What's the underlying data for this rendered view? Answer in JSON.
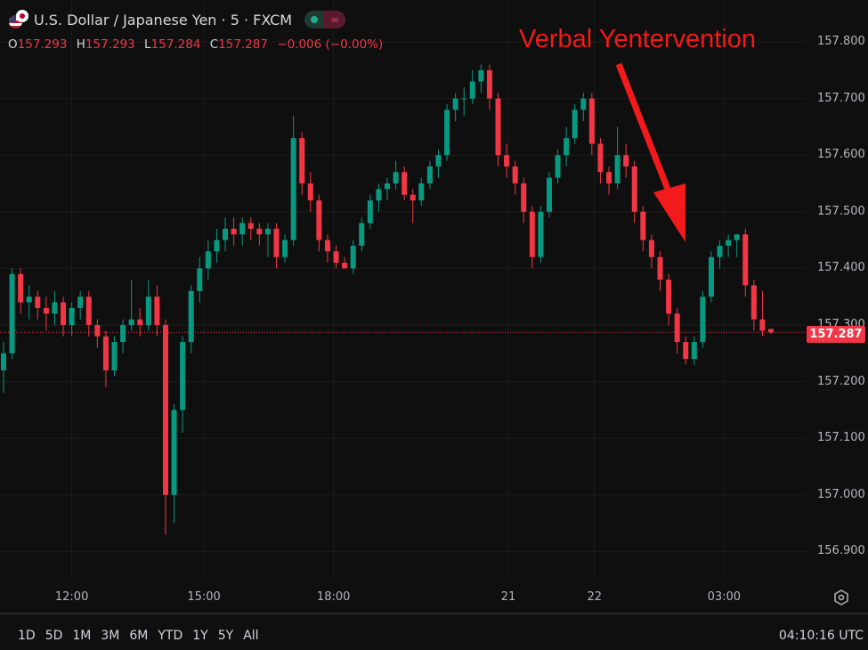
{
  "header": {
    "title": "U.S. Dollar / Japanese Yen · 5 · FXCM",
    "market_status_icon": "green-dot-icon",
    "session_icon": "wave-icon"
  },
  "ohlc": {
    "o_label": "O",
    "o": "157.293",
    "h_label": "H",
    "h": "157.293",
    "l_label": "L",
    "l": "157.284",
    "c_label": "C",
    "c": "157.287",
    "change": "−0.006 (−0.00%)"
  },
  "annotation": {
    "text": "Verbal Yentervention",
    "color": "#f21a1a"
  },
  "price_tag": "157.287",
  "bottom": {
    "ranges": [
      "1D",
      "5D",
      "1M",
      "3M",
      "6M",
      "YTD",
      "1Y",
      "5Y",
      "All"
    ],
    "clock": "04:10:16 UTC"
  },
  "colors": {
    "up": "#089981",
    "down": "#f23645",
    "background": "#0f0f0f",
    "grid": "#1c1c1c"
  },
  "chart_data": {
    "type": "candlestick",
    "yticks": [
      "157.800",
      "157.700",
      "157.600",
      "157.500",
      "157.400",
      "157.300",
      "157.200",
      "157.100",
      "157.000",
      "156.900"
    ],
    "ylim": [
      156.85,
      157.84
    ],
    "xticks": [
      {
        "label": "12:00",
        "index": 8
      },
      {
        "label": "15:00",
        "index": 23.5
      },
      {
        "label": "18:00",
        "index": 38.7
      },
      {
        "label": "21",
        "index": 59.2
      },
      {
        "label": "22",
        "index": 69.3
      },
      {
        "label": "03:00",
        "index": 84.5
      }
    ],
    "last_price": 157.287,
    "candles": [
      [
        157.22,
        157.27,
        157.18,
        157.25
      ],
      [
        157.25,
        157.4,
        157.24,
        157.39
      ],
      [
        157.39,
        157.4,
        157.32,
        157.34
      ],
      [
        157.34,
        157.37,
        157.31,
        157.35
      ],
      [
        157.35,
        157.36,
        157.31,
        157.33
      ],
      [
        157.33,
        157.35,
        157.29,
        157.32
      ],
      [
        157.32,
        157.36,
        157.3,
        157.34
      ],
      [
        157.34,
        157.35,
        157.28,
        157.3
      ],
      [
        157.3,
        157.34,
        157.28,
        157.33
      ],
      [
        157.33,
        157.36,
        157.31,
        157.35
      ],
      [
        157.35,
        157.36,
        157.28,
        157.3
      ],
      [
        157.3,
        157.31,
        157.26,
        157.28
      ],
      [
        157.28,
        157.29,
        157.19,
        157.22
      ],
      [
        157.22,
        157.28,
        157.21,
        157.27
      ],
      [
        157.27,
        157.31,
        157.25,
        157.3
      ],
      [
        157.3,
        157.38,
        157.29,
        157.31
      ],
      [
        157.31,
        157.33,
        157.28,
        157.3
      ],
      [
        157.3,
        157.38,
        157.29,
        157.35
      ],
      [
        157.35,
        157.37,
        157.28,
        157.3
      ],
      [
        157.3,
        157.31,
        156.93,
        157.0
      ],
      [
        157.0,
        157.16,
        156.95,
        157.15
      ],
      [
        157.15,
        157.28,
        157.11,
        157.27
      ],
      [
        157.27,
        157.37,
        157.25,
        157.36
      ],
      [
        157.36,
        157.42,
        157.34,
        157.4
      ],
      [
        157.4,
        157.45,
        157.38,
        157.43
      ],
      [
        157.43,
        157.47,
        157.41,
        157.45
      ],
      [
        157.45,
        157.49,
        157.43,
        157.47
      ],
      [
        157.47,
        157.49,
        157.44,
        157.46
      ],
      [
        157.46,
        157.49,
        157.44,
        157.48
      ],
      [
        157.48,
        157.49,
        157.45,
        157.47
      ],
      [
        157.47,
        157.48,
        157.44,
        157.46
      ],
      [
        157.46,
        157.48,
        157.42,
        157.47
      ],
      [
        157.47,
        157.48,
        157.4,
        157.42
      ],
      [
        157.42,
        157.46,
        157.41,
        157.45
      ],
      [
        157.45,
        157.67,
        157.44,
        157.63
      ],
      [
        157.63,
        157.64,
        157.53,
        157.55
      ],
      [
        157.55,
        157.57,
        157.5,
        157.52
      ],
      [
        157.52,
        157.53,
        157.43,
        157.45
      ],
      [
        157.45,
        157.46,
        157.41,
        157.43
      ],
      [
        157.43,
        157.44,
        157.4,
        157.41
      ],
      [
        157.41,
        157.42,
        157.4,
        157.4
      ],
      [
        157.4,
        157.45,
        157.39,
        157.44
      ],
      [
        157.44,
        157.49,
        157.43,
        157.48
      ],
      [
        157.48,
        157.53,
        157.47,
        157.52
      ],
      [
        157.52,
        157.55,
        157.5,
        157.54
      ],
      [
        157.54,
        157.56,
        157.52,
        157.55
      ],
      [
        157.55,
        157.59,
        157.54,
        157.57
      ],
      [
        157.57,
        157.58,
        157.52,
        157.53
      ],
      [
        157.53,
        157.54,
        157.48,
        157.52
      ],
      [
        157.52,
        157.56,
        157.51,
        157.55
      ],
      [
        157.55,
        157.59,
        157.54,
        157.58
      ],
      [
        157.58,
        157.61,
        157.56,
        157.6
      ],
      [
        157.6,
        157.69,
        157.59,
        157.68
      ],
      [
        157.68,
        157.71,
        157.66,
        157.7
      ],
      [
        157.7,
        157.72,
        157.67,
        157.7
      ],
      [
        157.7,
        157.75,
        157.69,
        157.73
      ],
      [
        157.73,
        157.76,
        157.71,
        157.75
      ],
      [
        157.75,
        157.76,
        157.68,
        157.7
      ],
      [
        157.7,
        157.71,
        157.58,
        157.6
      ],
      [
        157.6,
        157.62,
        157.56,
        157.58
      ],
      [
        157.58,
        157.59,
        157.53,
        157.55
      ],
      [
        157.55,
        157.56,
        157.48,
        157.5
      ],
      [
        157.5,
        157.51,
        157.4,
        157.42
      ],
      [
        157.42,
        157.51,
        157.41,
        157.5
      ],
      [
        157.5,
        157.57,
        157.49,
        157.56
      ],
      [
        157.56,
        157.61,
        157.55,
        157.6
      ],
      [
        157.6,
        157.65,
        157.58,
        157.63
      ],
      [
        157.63,
        157.69,
        157.62,
        157.68
      ],
      [
        157.68,
        157.71,
        157.66,
        157.7
      ],
      [
        157.7,
        157.71,
        157.6,
        157.62
      ],
      [
        157.62,
        157.63,
        157.55,
        157.57
      ],
      [
        157.57,
        157.58,
        157.53,
        157.55
      ],
      [
        157.55,
        157.65,
        157.54,
        157.6
      ],
      [
        157.6,
        157.62,
        157.56,
        157.58
      ],
      [
        157.58,
        157.59,
        157.48,
        157.5
      ],
      [
        157.5,
        157.51,
        157.43,
        157.45
      ],
      [
        157.45,
        157.46,
        157.4,
        157.42
      ],
      [
        157.42,
        157.43,
        157.36,
        157.38
      ],
      [
        157.38,
        157.39,
        157.3,
        157.32
      ],
      [
        157.32,
        157.33,
        157.25,
        157.27
      ],
      [
        157.27,
        157.28,
        157.23,
        157.24
      ],
      [
        157.24,
        157.28,
        157.23,
        157.27
      ],
      [
        157.27,
        157.36,
        157.26,
        157.35
      ],
      [
        157.35,
        157.43,
        157.34,
        157.42
      ],
      [
        157.42,
        157.45,
        157.4,
        157.44
      ],
      [
        157.44,
        157.46,
        157.42,
        157.45
      ],
      [
        157.45,
        157.46,
        157.42,
        157.46
      ],
      [
        157.46,
        157.47,
        157.35,
        157.37
      ],
      [
        157.37,
        157.38,
        157.29,
        157.31
      ],
      [
        157.31,
        157.36,
        157.28,
        157.29
      ],
      [
        157.293,
        157.293,
        157.284,
        157.287
      ]
    ]
  }
}
